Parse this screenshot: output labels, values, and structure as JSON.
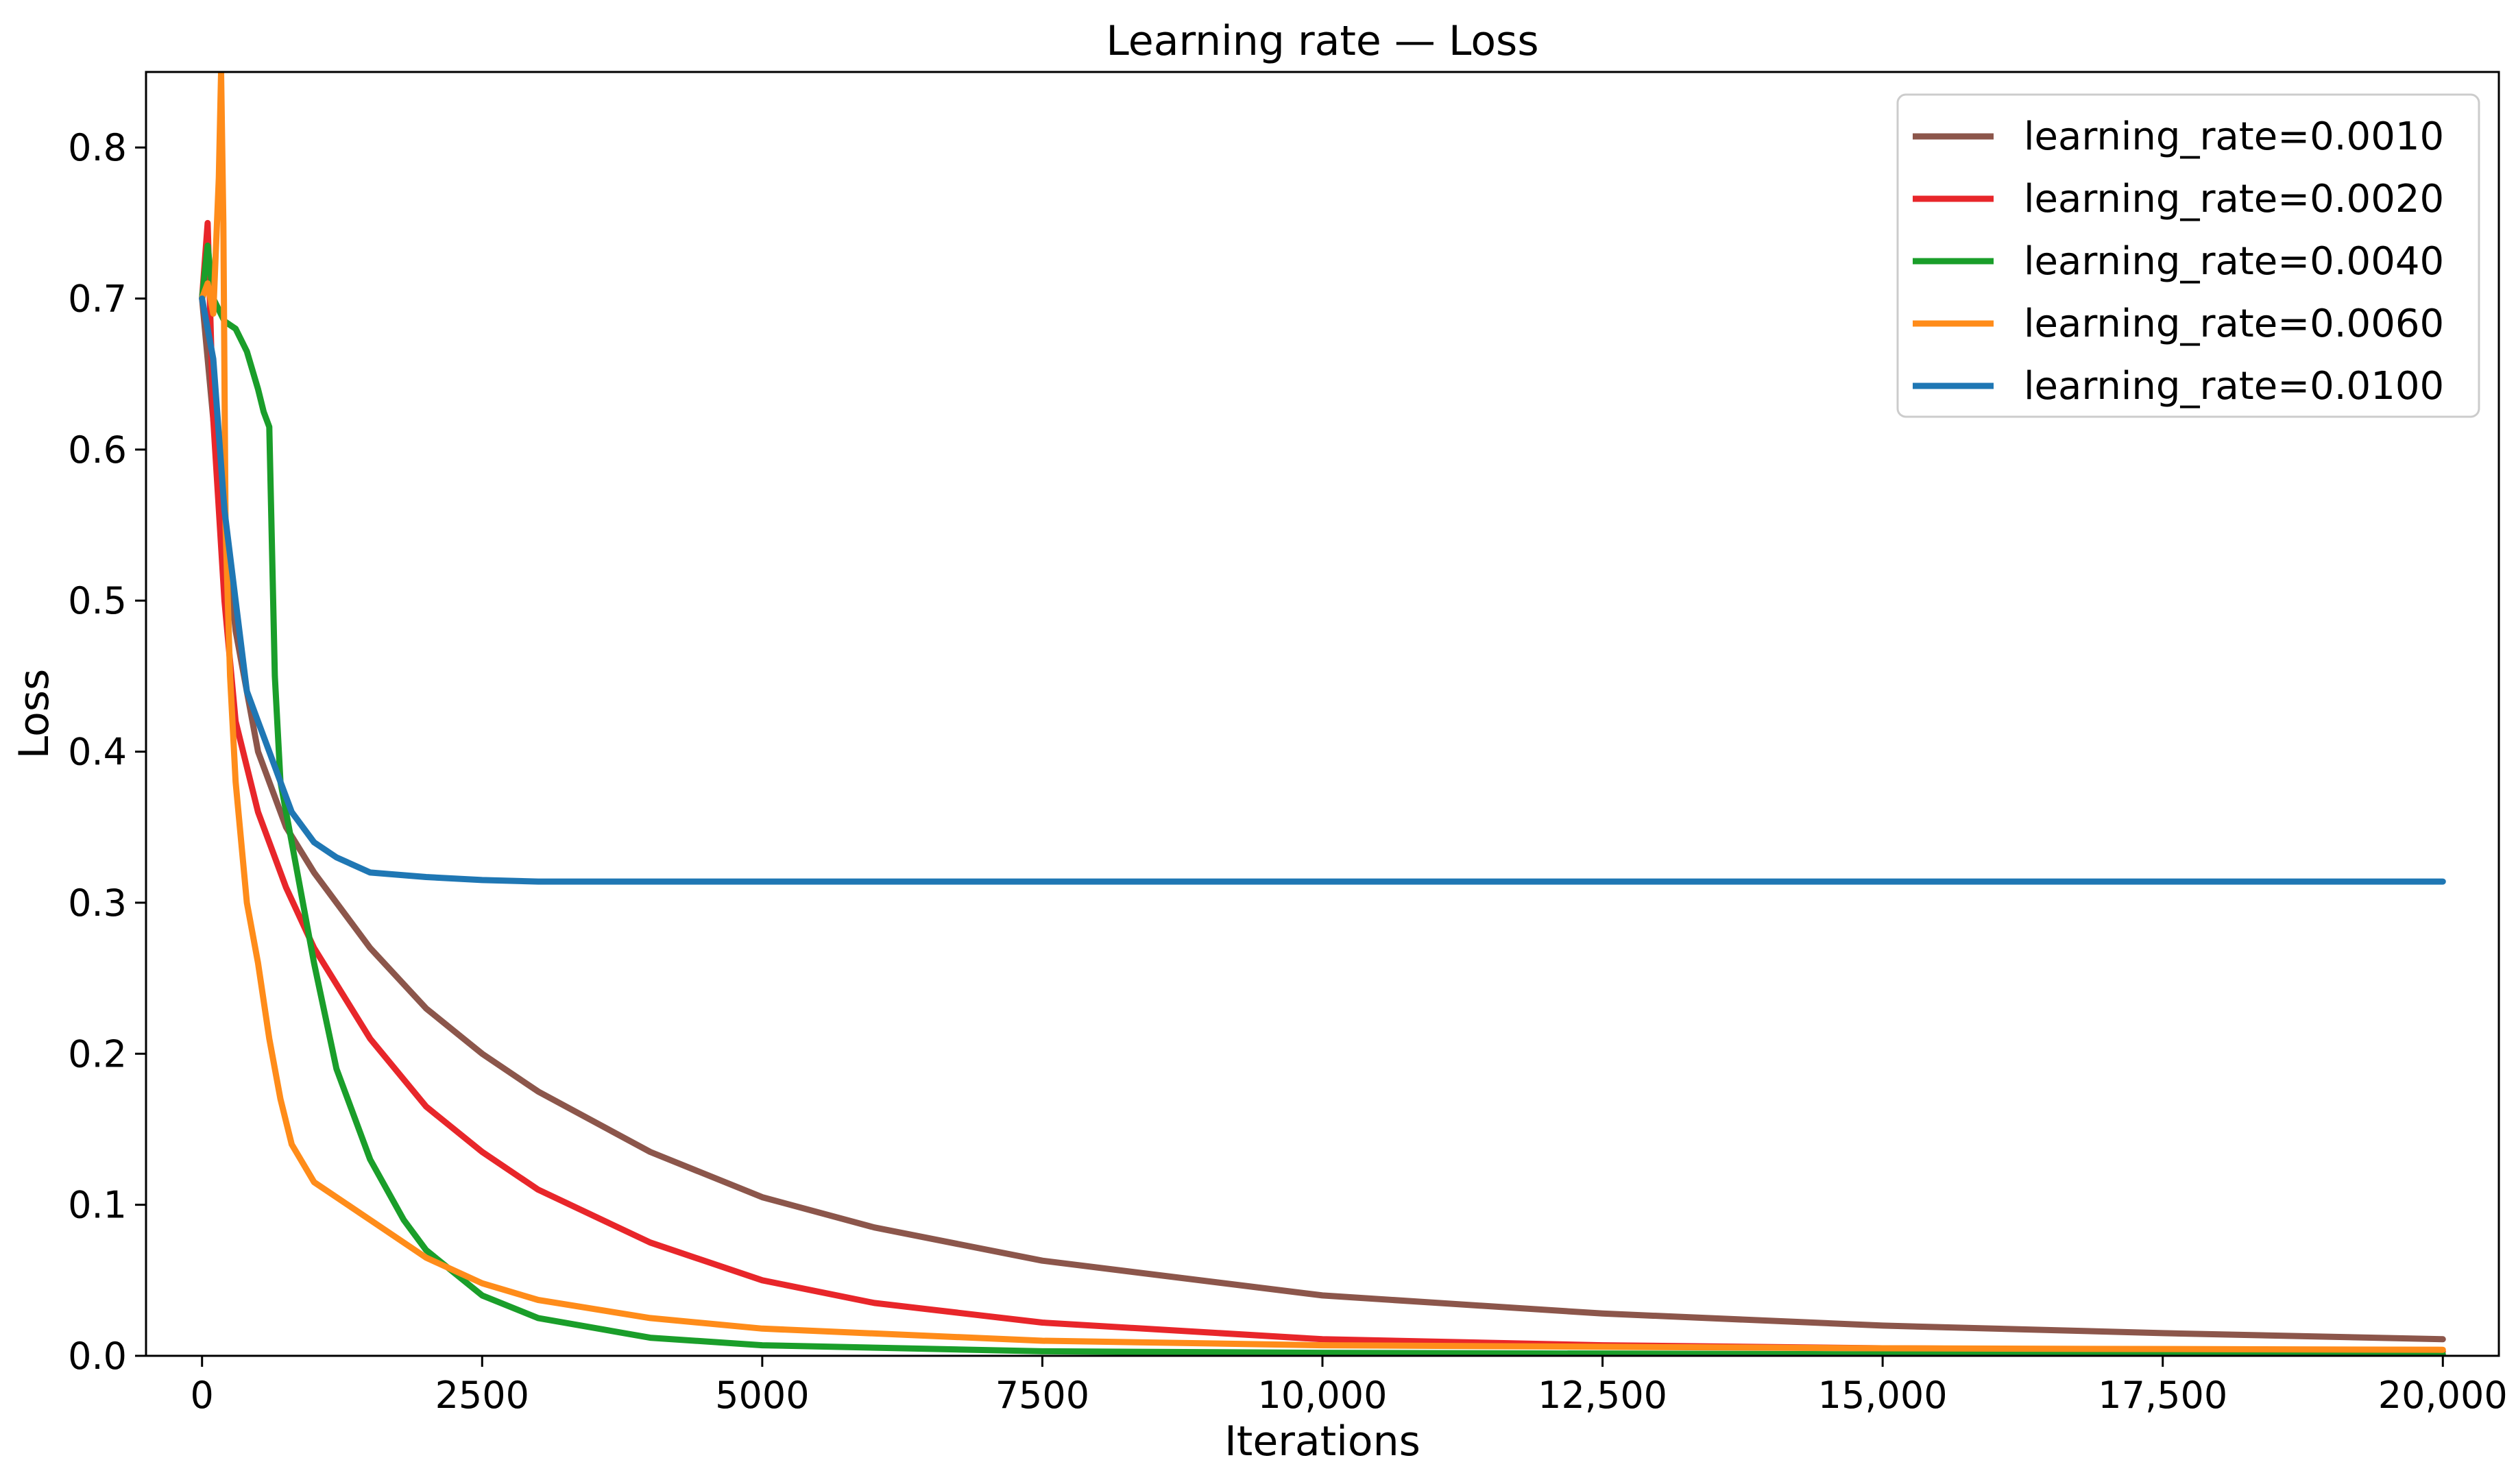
{
  "chart_data": {
    "type": "line",
    "title": "Learning rate — Loss",
    "xlabel": "Iterations",
    "ylabel": "Loss",
    "xlim": [
      -500,
      20500
    ],
    "ylim": [
      0,
      0.85
    ],
    "xticks": [
      0,
      2500,
      5000,
      7500,
      10000,
      12500,
      15000,
      17500,
      20000
    ],
    "xtick_labels": [
      "0",
      "2500",
      "5000",
      "7500",
      "10,000",
      "12,500",
      "15,000",
      "17,500",
      "20,000"
    ],
    "yticks": [
      0.0,
      0.1,
      0.2,
      0.3,
      0.4,
      0.5,
      0.6,
      0.7,
      0.8
    ],
    "ytick_labels": [
      "0.0",
      "0.1",
      "0.2",
      "0.3",
      "0.4",
      "0.5",
      "0.6",
      "0.7",
      "0.8"
    ],
    "grid": false,
    "legend_position": "top-right",
    "series": [
      {
        "name": "learning_rate=0.0010",
        "color": "#8c564b",
        "x": [
          0,
          100,
          200,
          300,
          500,
          750,
          1000,
          1500,
          2000,
          2500,
          3000,
          4000,
          5000,
          6000,
          7500,
          10000,
          12500,
          15000,
          17500,
          20000
        ],
        "y": [
          0.7,
          0.62,
          0.55,
          0.48,
          0.4,
          0.35,
          0.32,
          0.27,
          0.23,
          0.2,
          0.175,
          0.135,
          0.105,
          0.085,
          0.063,
          0.04,
          0.028,
          0.02,
          0.015,
          0.011
        ]
      },
      {
        "name": "learning_rate=0.0020",
        "color": "#e8262a",
        "x": [
          0,
          50,
          100,
          200,
          300,
          500,
          750,
          1000,
          1500,
          2000,
          2500,
          3000,
          4000,
          5000,
          6000,
          7500,
          10000,
          12500,
          15000,
          20000
        ],
        "y": [
          0.7,
          0.75,
          0.62,
          0.5,
          0.42,
          0.36,
          0.31,
          0.27,
          0.21,
          0.165,
          0.135,
          0.11,
          0.075,
          0.05,
          0.035,
          0.022,
          0.011,
          0.007,
          0.005,
          0.003
        ]
      },
      {
        "name": "learning_rate=0.0040",
        "color": "#1a9e2a",
        "x": [
          0,
          50,
          100,
          200,
          300,
          400,
          500,
          550,
          600,
          650,
          700,
          800,
          1000,
          1200,
          1500,
          1800,
          2000,
          2500,
          3000,
          4000,
          5000,
          7500,
          10000,
          15000,
          20000
        ],
        "y": [
          0.7,
          0.735,
          0.7,
          0.685,
          0.68,
          0.665,
          0.64,
          0.625,
          0.615,
          0.45,
          0.38,
          0.34,
          0.26,
          0.19,
          0.13,
          0.09,
          0.07,
          0.04,
          0.025,
          0.012,
          0.007,
          0.003,
          0.002,
          0.001,
          0.001
        ]
      },
      {
        "name": "learning_rate=0.0060",
        "color": "#ff8c1a",
        "x": [
          0,
          50,
          100,
          150,
          170,
          190,
          210,
          250,
          300,
          400,
          500,
          600,
          700,
          800,
          1000,
          1500,
          2000,
          2500,
          3000,
          4000,
          5000,
          7500,
          10000,
          15000,
          20000
        ],
        "y": [
          0.7,
          0.71,
          0.69,
          0.78,
          0.85,
          0.75,
          0.55,
          0.45,
          0.38,
          0.3,
          0.26,
          0.21,
          0.17,
          0.14,
          0.115,
          0.09,
          0.065,
          0.048,
          0.037,
          0.025,
          0.018,
          0.01,
          0.007,
          0.005,
          0.004
        ]
      },
      {
        "name": "learning_rate=0.0100",
        "color": "#1f77b4",
        "x": [
          0,
          100,
          200,
          300,
          400,
          500,
          600,
          700,
          800,
          1000,
          1200,
          1500,
          2000,
          2500,
          3000,
          5000,
          10000,
          15000,
          20000
        ],
        "y": [
          0.7,
          0.66,
          0.56,
          0.5,
          0.44,
          0.42,
          0.4,
          0.38,
          0.36,
          0.34,
          0.33,
          0.32,
          0.317,
          0.315,
          0.314,
          0.314,
          0.314,
          0.314,
          0.314
        ]
      }
    ]
  }
}
